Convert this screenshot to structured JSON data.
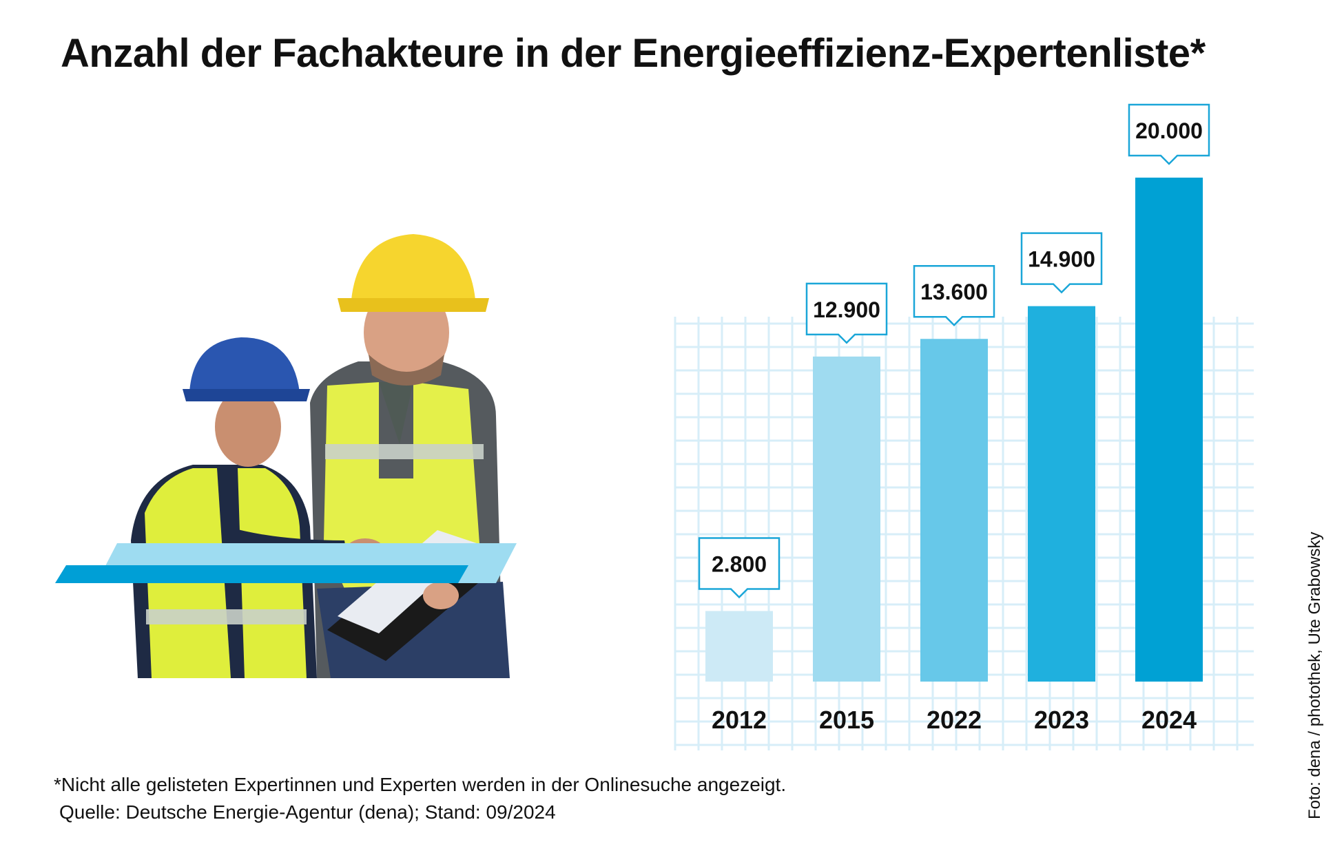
{
  "title": "Anzahl der Fachakteure in der Energieeffizienz-Expertenliste*",
  "footnote": "*Nicht alle gelisteten Expertinnen und Experten werden in der Onlinesuche angezeigt.",
  "source": "Quelle: Deutsche Energie-Agentur (dena); Stand: 09/2024",
  "photo_credit": "Foto: dena / photothek, Ute Grabowsky",
  "colors": {
    "bars": [
      "#cdeaf6",
      "#9fdbf0",
      "#67c8e9",
      "#1fb0de",
      "#00a1d4"
    ],
    "stripe_dark": "#009fd6",
    "stripe_light": "#9edcf1",
    "grid": "#d7eef8",
    "label_border": "#1aa6d8"
  },
  "chart_data": {
    "type": "bar",
    "categories": [
      "2012",
      "2015",
      "2022",
      "2023",
      "2024"
    ],
    "values": [
      2800,
      12900,
      13600,
      14900,
      20000
    ],
    "value_labels": [
      "2.800",
      "12.900",
      "13.600",
      "14.900",
      "20.000"
    ],
    "title": "Anzahl der Fachakteure in der Energieeffizienz-Expertenliste*",
    "xlabel": "",
    "ylabel": "",
    "ylim": [
      0,
      20000
    ],
    "grid": true,
    "legend": "none"
  }
}
